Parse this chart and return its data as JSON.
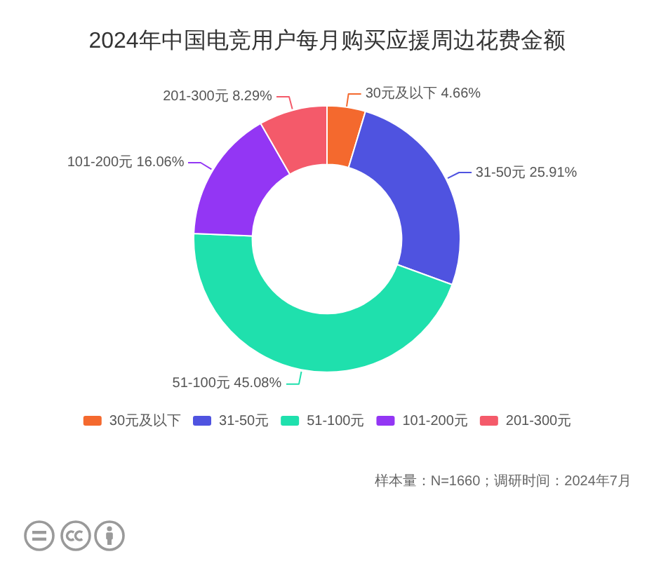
{
  "chart_data": {
    "type": "donut",
    "title": "2024年中国电竞用户每月购买应援周边花费金额",
    "categories": [
      "30元及以下",
      "31-50元",
      "51-100元",
      "101-200元",
      "201-300元"
    ],
    "values": [
      4.66,
      25.91,
      45.08,
      16.06,
      8.29
    ],
    "colors": [
      "#f4692e",
      "#4f53e0",
      "#1fe0ad",
      "#9336f4",
      "#f45a6a"
    ],
    "value_labels": [
      "4.66%",
      "25.91%",
      "45.08%",
      "16.06%",
      "8.29%"
    ],
    "legend": "bottom",
    "annotations": [
      "样本量：N=1660；调研时间：2024年7月"
    ]
  }
}
